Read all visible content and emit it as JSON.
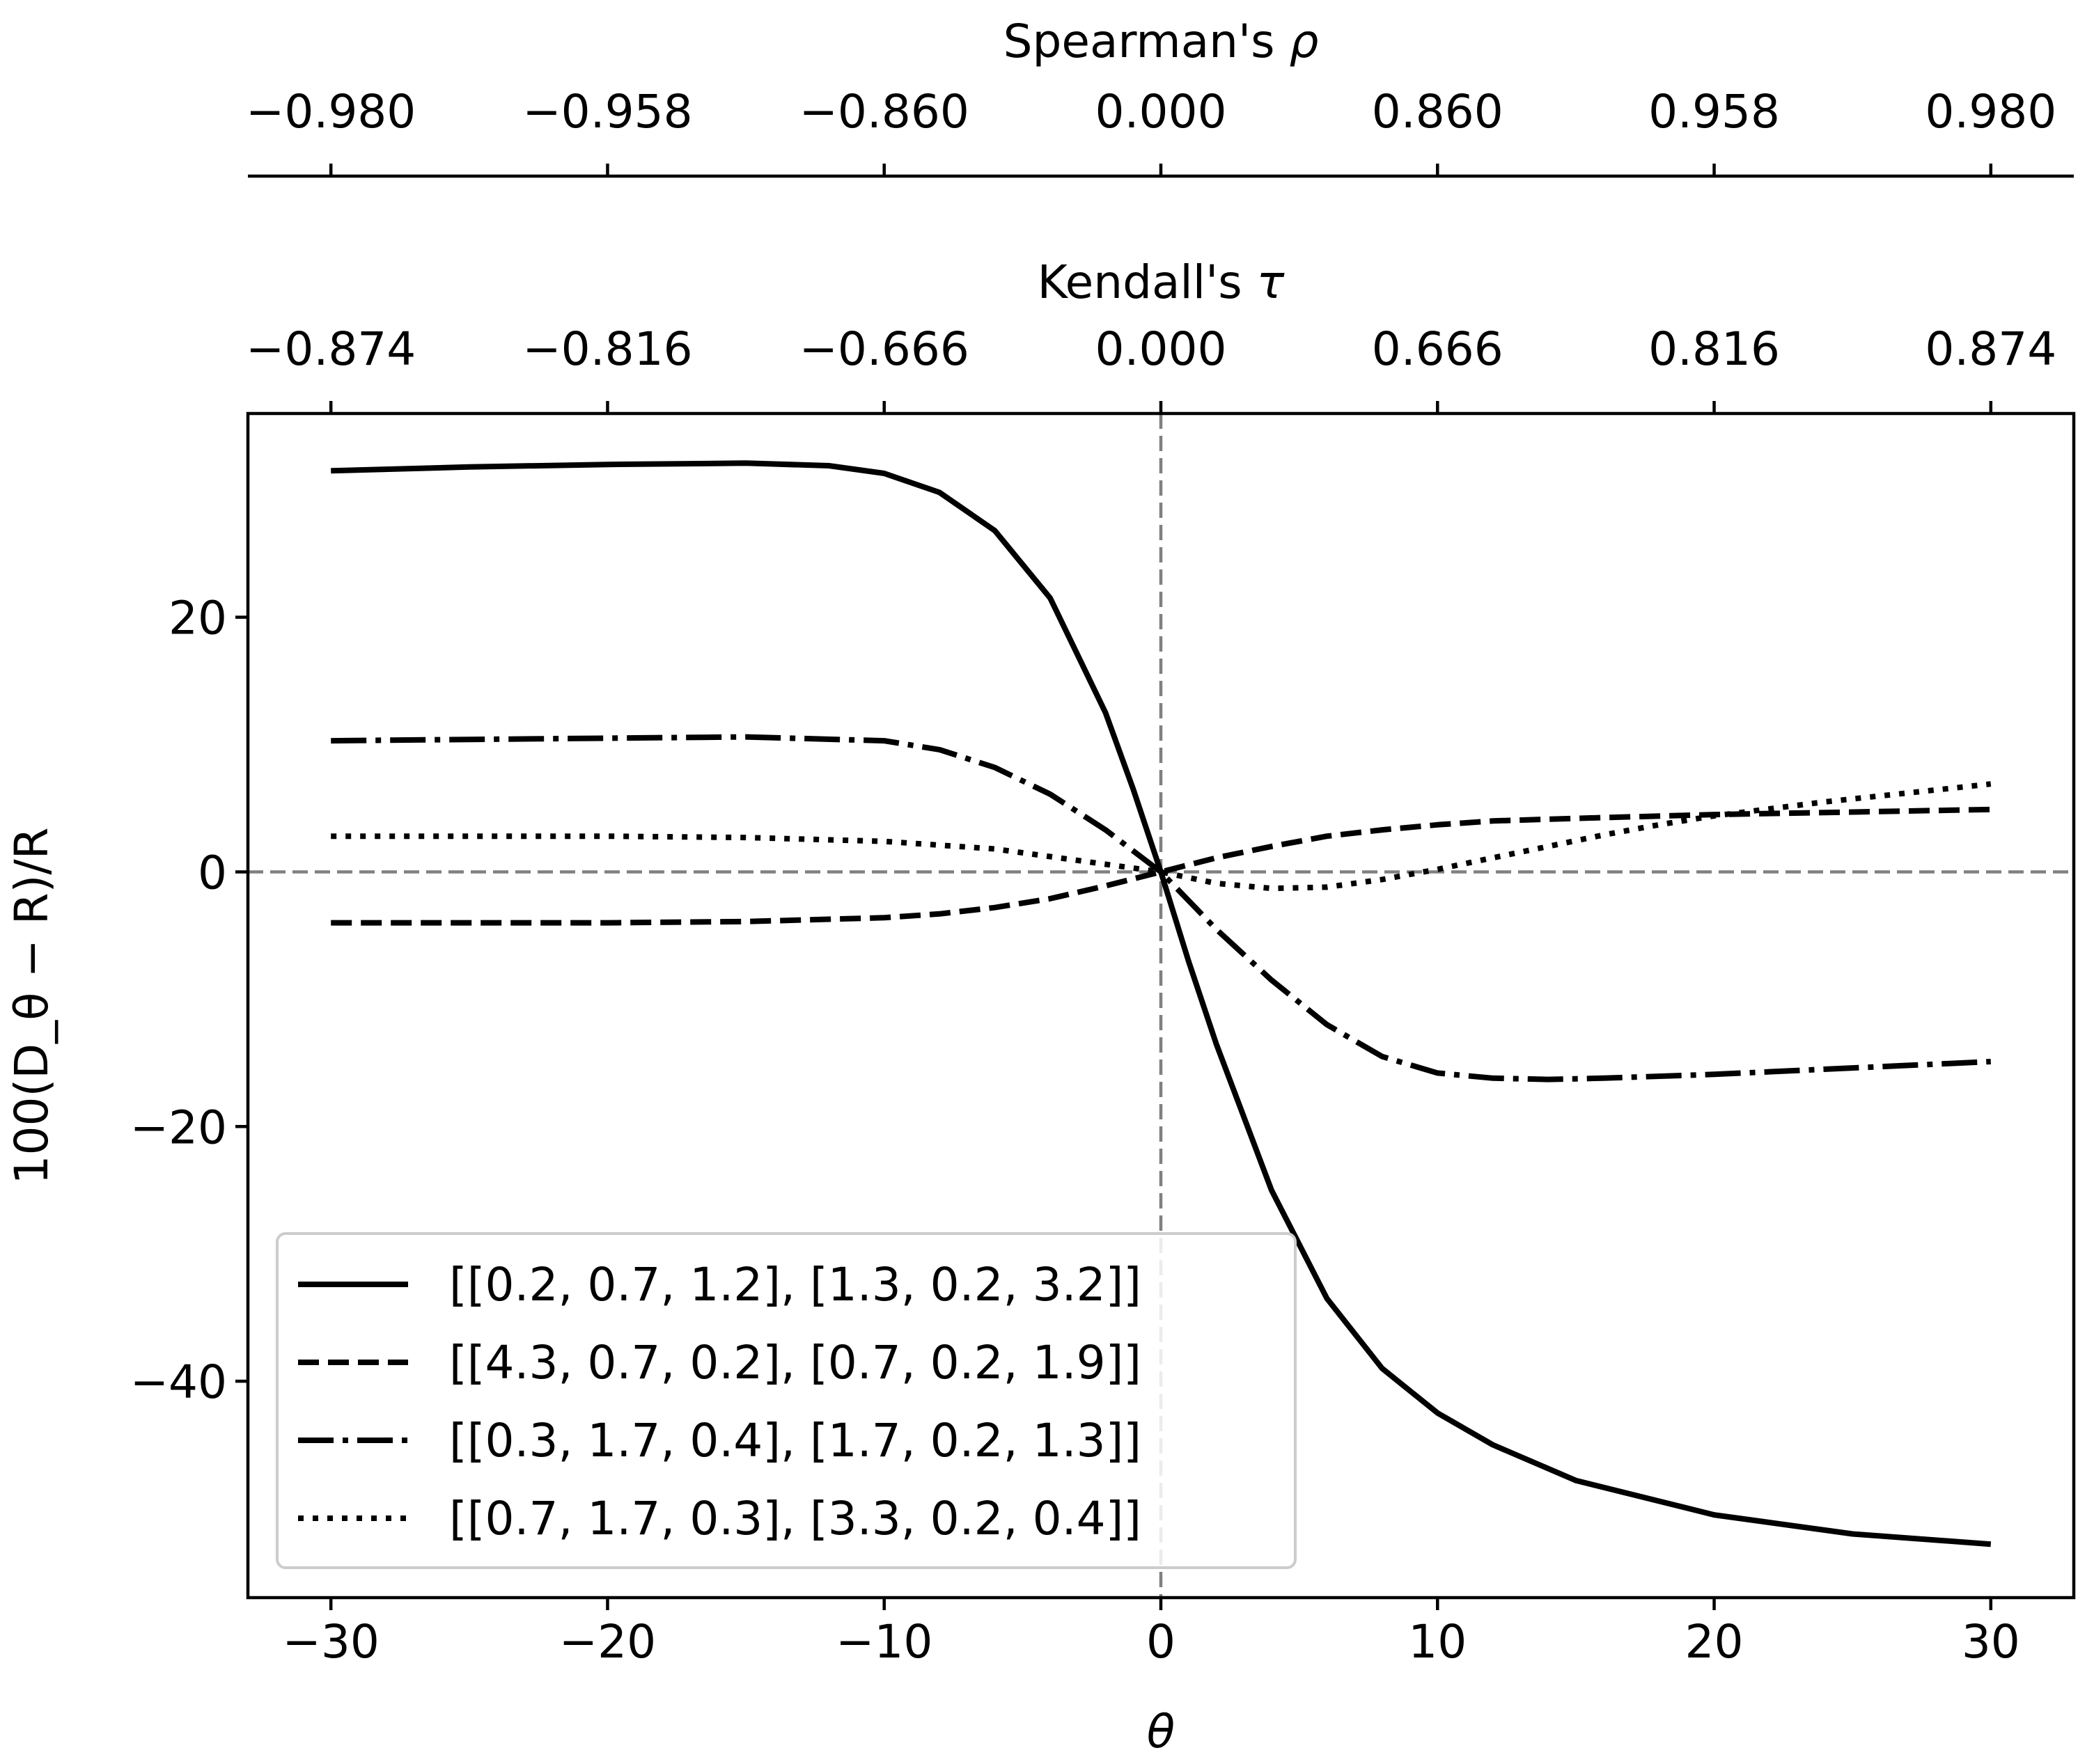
{
  "chart_data": {
    "type": "line",
    "title": "",
    "xlabel": "θ",
    "ylabel": "100(D_θ − R)/R",
    "xlim": [
      -33,
      33
    ],
    "ylim": [
      -57,
      36
    ],
    "xticks": [
      -30,
      -20,
      -10,
      0,
      10,
      20,
      30
    ],
    "xtick_labels": [
      "−30",
      "−20",
      "−10",
      "0",
      "10",
      "20",
      "30"
    ],
    "yticks": [
      20,
      0,
      -20,
      -40
    ],
    "ytick_labels": [
      "20",
      "0",
      "−20",
      "−40"
    ],
    "reference_lines": {
      "x": 0,
      "y": 0,
      "color": "#808080",
      "style": "dashed"
    },
    "secondary_axes": [
      {
        "name": "kendall",
        "label_prefix": "Kendall's ",
        "label_symbol": "τ",
        "tick_positions": [
          -30,
          -20,
          -10,
          0,
          10,
          20,
          30
        ],
        "tick_labels": [
          "−0.874",
          "−0.816",
          "−0.666",
          "0.000",
          "0.666",
          "0.816",
          "0.874"
        ]
      },
      {
        "name": "spearman",
        "label_prefix": "Spearman's ",
        "label_symbol": "ρ",
        "tick_positions": [
          -30,
          -20,
          -10,
          0,
          10,
          20,
          30
        ],
        "tick_labels": [
          "−0.980",
          "−0.958",
          "−0.860",
          "0.000",
          "0.860",
          "0.958",
          "0.980"
        ]
      }
    ],
    "legend": {
      "placement": "lower-left"
    },
    "series": [
      {
        "name": "[[0.2, 0.7, 1.2], [1.3, 0.2, 3.2]]",
        "style": "solid",
        "x": [
          -30,
          -25,
          -20,
          -15,
          -12,
          -10,
          -8,
          -6,
          -4,
          -2,
          -1,
          0,
          1,
          2,
          4,
          6,
          8,
          10,
          12,
          15,
          20,
          25,
          30
        ],
        "y": [
          31.5,
          31.8,
          32.0,
          32.1,
          31.9,
          31.3,
          29.8,
          26.8,
          21.5,
          12.5,
          6.5,
          0,
          -7.0,
          -13.5,
          -25.0,
          -33.5,
          -39.0,
          -42.5,
          -45.0,
          -47.8,
          -50.5,
          -52.0,
          -52.8
        ]
      },
      {
        "name": "[[4.3, 0.7, 0.2], [0.7, 0.2, 1.9]]",
        "style": "dashed",
        "x": [
          -30,
          -25,
          -20,
          -15,
          -10,
          -8,
          -6,
          -4,
          -2,
          0,
          2,
          4,
          6,
          8,
          10,
          12,
          15,
          20,
          25,
          30
        ],
        "y": [
          -4.0,
          -4.0,
          -4.0,
          -3.9,
          -3.6,
          -3.3,
          -2.8,
          -2.1,
          -1.1,
          0,
          1.1,
          2.0,
          2.8,
          3.3,
          3.7,
          4.0,
          4.2,
          4.5,
          4.7,
          4.9
        ]
      },
      {
        "name": "[[0.3, 1.7, 0.4], [1.7, 0.2, 1.3]]",
        "style": "dashdot",
        "x": [
          -30,
          -25,
          -20,
          -15,
          -10,
          -8,
          -6,
          -4,
          -2,
          0,
          2,
          4,
          6,
          8,
          10,
          12,
          14,
          16,
          20,
          25,
          30
        ],
        "y": [
          10.3,
          10.4,
          10.5,
          10.6,
          10.3,
          9.6,
          8.2,
          6.1,
          3.3,
          0,
          -4.5,
          -8.5,
          -12.0,
          -14.5,
          -15.8,
          -16.2,
          -16.3,
          -16.2,
          -15.9,
          -15.4,
          -14.9
        ]
      },
      {
        "name": "[[0.7, 1.7, 0.3], [3.3, 0.2, 0.4]]",
        "style": "dotted",
        "x": [
          -30,
          -25,
          -20,
          -15,
          -10,
          -6,
          -4,
          -2,
          0,
          2,
          4,
          6,
          8,
          10,
          12,
          14,
          16,
          18,
          20,
          24,
          27,
          30
        ],
        "y": [
          2.8,
          2.8,
          2.8,
          2.7,
          2.4,
          1.8,
          1.2,
          0.6,
          0,
          -0.9,
          -1.3,
          -1.2,
          -0.6,
          0.2,
          1.1,
          2.0,
          2.9,
          3.7,
          4.4,
          5.5,
          6.2,
          6.9
        ]
      }
    ]
  }
}
